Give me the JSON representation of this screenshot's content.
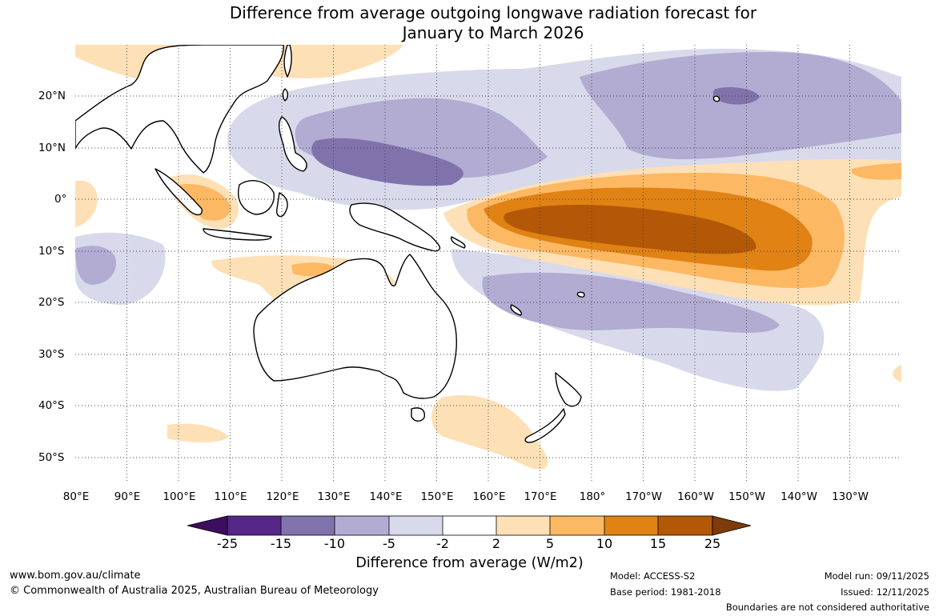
{
  "title": {
    "line1": "Difference from average outgoing longwave radiation forecast for",
    "line2": "January to March 2026"
  },
  "longitude_labels": [
    "80°E",
    "90°E",
    "100°E",
    "110°E",
    "120°E",
    "130°E",
    "140°E",
    "150°E",
    "160°E",
    "170°E",
    "180°",
    "170°W",
    "160°W",
    "150°W",
    "140°W",
    "130°W"
  ],
  "latitude_labels": [
    "20°N",
    "10°N",
    "0°",
    "10°S",
    "20°S",
    "30°S",
    "40°S",
    "50°S"
  ],
  "colorbar": {
    "title": "Difference from average (W/m2)",
    "ticks": [
      "-25",
      "-15",
      "-10",
      "-5",
      "-2",
      "2",
      "5",
      "10",
      "15",
      "25"
    ],
    "colors": [
      "#3d0e5f",
      "#542788",
      "#8073ac",
      "#b2abd2",
      "#d8daeb",
      "#ffffff",
      "#fee0b6",
      "#fdb863",
      "#e08214",
      "#b35806",
      "#7f3b08"
    ]
  },
  "footer": {
    "website": "www.bom.gov.au/climate",
    "copyright": "© Commonwealth of Australia 2025, Australian Bureau of Meteorology",
    "model": "Model: ACCESS-S2",
    "base_period": "Base period: 1981-2018",
    "model_run": "Model run: 09/11/2025",
    "issued": "Issued: 12/11/2025",
    "disclaimer": "Boundaries are not considered authoritative"
  },
  "map_anomaly_regions": [
    {
      "label": "strong positive equatorial Pacific",
      "level": "15 to 25"
    },
    {
      "label": "negative western Pacific north of equator",
      "level": "-10 to -15"
    },
    {
      "label": "negative south Pacific convergence",
      "level": "-5 to -10"
    }
  ]
}
